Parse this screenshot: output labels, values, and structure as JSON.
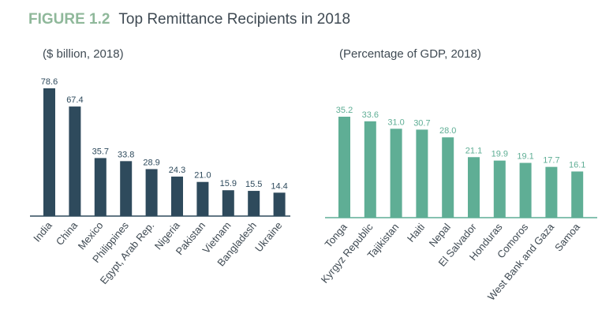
{
  "figure": {
    "label": "FIGURE 1.2",
    "title": "Top Remittance Recipients in 2018",
    "label_color": "#8fb89a",
    "title_color": "#3f4a53"
  },
  "chart_data": [
    {
      "type": "bar",
      "title": "($ billion, 2018)",
      "categories": [
        "India",
        "China",
        "Mexico",
        "Philippines",
        "Egypt, Arab Rep.",
        "Nigeria",
        "Pakistan",
        "Vietnam",
        "Bangladesh",
        "Ukraine"
      ],
      "values": [
        78.6,
        67.4,
        35.7,
        33.8,
        28.9,
        24.3,
        21.0,
        15.9,
        15.5,
        14.4
      ],
      "value_labels": [
        "78.6",
        "67.4",
        "35.7",
        "33.8",
        "28.9",
        "24.3",
        "21.0",
        "15.9",
        "15.5",
        "14.4"
      ],
      "bar_color": "#2e4a5c",
      "label_color": "#2e4a5c",
      "ylim": [
        0,
        78.6
      ],
      "xlabel": "",
      "ylabel": ""
    },
    {
      "type": "bar",
      "title": "(Percentage of GDP, 2018)",
      "categories": [
        "Tonga",
        "Kyrgyz Republic",
        "Tajikistan",
        "Haiti",
        "Nepal",
        "El Salvador",
        "Honduras",
        "Comoros",
        "West Bank and Gaza",
        "Samoa"
      ],
      "values": [
        35.2,
        33.6,
        31.0,
        30.7,
        28.0,
        21.1,
        19.9,
        19.1,
        17.7,
        16.1
      ],
      "value_labels": [
        "35.2",
        "33.6",
        "31.0",
        "30.7",
        "28.0",
        "21.1",
        "19.9",
        "19.1",
        "17.7",
        "16.1"
      ],
      "bar_color": "#5fae95",
      "label_color": "#5fae95",
      "ylim": [
        0,
        35.2
      ],
      "xlabel": "",
      "ylabel": ""
    }
  ]
}
